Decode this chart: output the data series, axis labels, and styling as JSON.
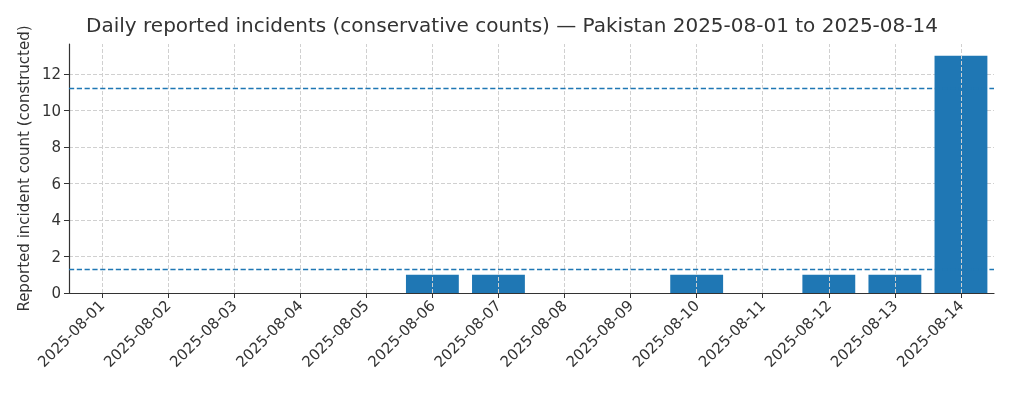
{
  "chart_data": {
    "type": "bar",
    "title": "Daily reported incidents (conservative counts) — Pakistan 2025-08-01 to 2025-08-14",
    "ylabel": "Reported incident count (constructed)",
    "categories": [
      "2025-08-01",
      "2025-08-02",
      "2025-08-03",
      "2025-08-04",
      "2025-08-05",
      "2025-08-06",
      "2025-08-07",
      "2025-08-08",
      "2025-08-09",
      "2025-08-10",
      "2025-08-11",
      "2025-08-12",
      "2025-08-13",
      "2025-08-14"
    ],
    "values": [
      0,
      0,
      0,
      0,
      0,
      1,
      1,
      0,
      0,
      1,
      0,
      1,
      1,
      13
    ],
    "color": "#1f77b4",
    "ylim": [
      0,
      13.65
    ],
    "yticks": [
      0,
      2,
      4,
      6,
      8,
      10,
      12
    ],
    "grid": true,
    "ref_lines": [
      {
        "axis": "y",
        "value": 1.29,
        "color": "#1f77b4",
        "line_style": "dashed"
      },
      {
        "axis": "y",
        "value": 11.2,
        "color": "#1f77b4",
        "line_style": "dashed"
      }
    ]
  }
}
